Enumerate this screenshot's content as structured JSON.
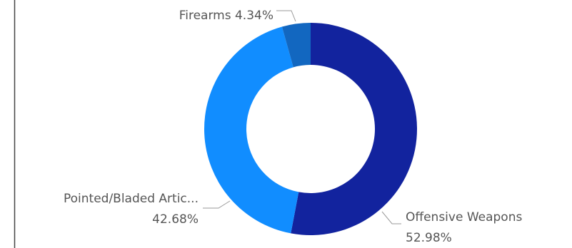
{
  "chart_data": {
    "type": "pie",
    "variant": "donut",
    "legend": "none",
    "slices": [
      {
        "name": "Offensive Weapons",
        "value": 52.98,
        "label": "Offensive Weapons",
        "value_label": "52.98%",
        "color": "#12239E"
      },
      {
        "name": "Pointed/Bladed Articles",
        "value": 42.68,
        "label": "Pointed/Bladed Artic...",
        "value_label": "42.68%",
        "color": "#118DFF"
      },
      {
        "name": "Firearms",
        "value": 4.34,
        "label": "Firearms 4.34%",
        "value_label": "",
        "color": "#1267C0"
      }
    ]
  }
}
